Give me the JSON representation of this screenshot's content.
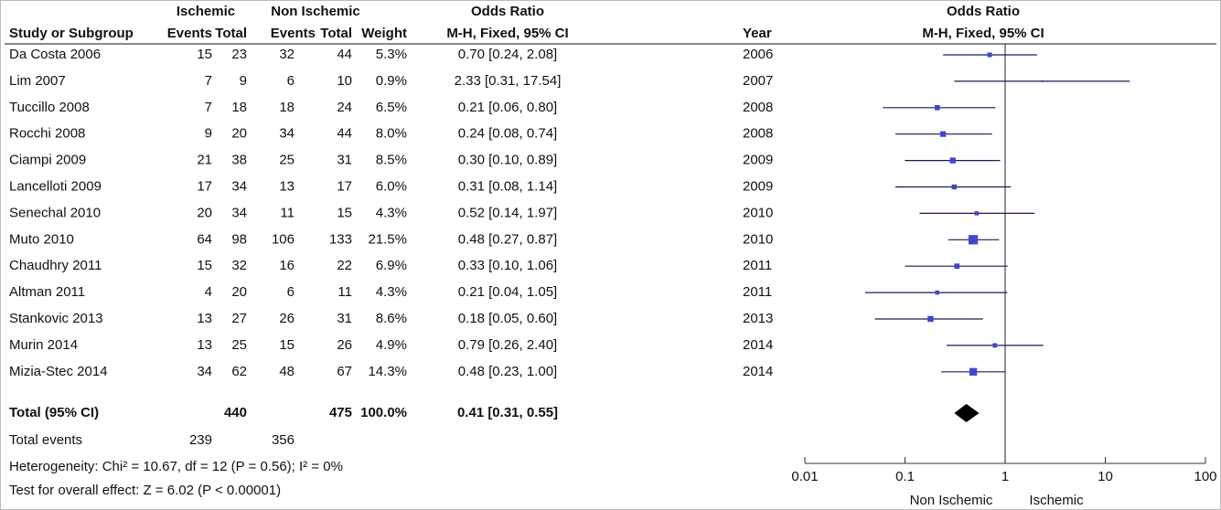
{
  "table": {
    "group_headers": [
      "Ischemic",
      "Non Ischemic",
      "Odds Ratio"
    ],
    "columns": [
      "Study or Subgroup",
      "Events",
      "Total",
      "Events",
      "Total",
      "Weight",
      "M-H, Fixed, 95% CI",
      "Year"
    ],
    "rows": [
      [
        "Da Costa 2006",
        "15",
        "23",
        "32",
        "44",
        "5.3%",
        "0.70 [0.24, 2.08]",
        "2006"
      ],
      [
        "Lim 2007",
        "7",
        "9",
        "6",
        "10",
        "0.9%",
        "2.33 [0.31, 17.54]",
        "2007"
      ],
      [
        "Tuccillo 2008",
        "7",
        "18",
        "18",
        "24",
        "6.5%",
        "0.21 [0.06, 0.80]",
        "2008"
      ],
      [
        "Rocchi 2008",
        "9",
        "20",
        "34",
        "44",
        "8.0%",
        "0.24 [0.08, 0.74]",
        "2008"
      ],
      [
        "Ciampi 2009",
        "21",
        "38",
        "25",
        "31",
        "8.5%",
        "0.30 [0.10, 0.89]",
        "2009"
      ],
      [
        "Lancelloti 2009",
        "17",
        "34",
        "13",
        "17",
        "6.0%",
        "0.31 [0.08, 1.14]",
        "2009"
      ],
      [
        "Senechal 2010",
        "20",
        "34",
        "11",
        "15",
        "4.3%",
        "0.52 [0.14, 1.97]",
        "2010"
      ],
      [
        "Muto 2010",
        "64",
        "98",
        "106",
        "133",
        "21.5%",
        "0.48 [0.27, 0.87]",
        "2010"
      ],
      [
        "Chaudhry 2011",
        "15",
        "32",
        "16",
        "22",
        "6.9%",
        "0.33 [0.10, 1.06]",
        "2011"
      ],
      [
        "Altman 2011",
        "4",
        "20",
        "6",
        "11",
        "4.3%",
        "0.21 [0.04, 1.05]",
        "2011"
      ],
      [
        "Stankovic 2013",
        "13",
        "27",
        "26",
        "31",
        "8.6%",
        "0.18 [0.05, 0.60]",
        "2013"
      ],
      [
        "Murin 2014",
        "13",
        "25",
        "15",
        "26",
        "4.9%",
        "0.79 [0.26, 2.40]",
        "2014"
      ],
      [
        "Mizia-Stec 2014",
        "34",
        "62",
        "48",
        "67",
        "14.3%",
        "0.48 [0.23, 1.00]",
        "2014"
      ]
    ],
    "total_row": [
      "Total (95% CI)",
      null,
      "440",
      null,
      "475",
      "100.0%",
      "0.41 [0.31, 0.55]",
      null
    ],
    "events_row": [
      "Total events",
      "239",
      null,
      "356",
      null,
      null,
      null,
      null
    ],
    "heterogeneity": "Heterogeneity: Chi² = 10.67, df = 12 (P = 0.56); I² = 0%",
    "overall_effect": "Test for overall effect: Z = 6.02 (P < 0.00001)"
  },
  "chart_data": {
    "type": "forest",
    "title": "Odds Ratio",
    "subtitle": "M-H, Fixed, 95% CI",
    "values": [
      0.7,
      2.33,
      0.21,
      0.24,
      0.3,
      0.31,
      0.52,
      0.48,
      0.33,
      0.21,
      0.18,
      0.79,
      0.48
    ],
    "lower": [
      0.24,
      0.31,
      0.06,
      0.08,
      0.1,
      0.08,
      0.14,
      0.27,
      0.1,
      0.04,
      0.05,
      0.26,
      0.23
    ],
    "upper": [
      2.08,
      17.54,
      0.8,
      0.74,
      0.89,
      1.14,
      1.97,
      0.87,
      1.06,
      1.05,
      0.6,
      2.4,
      1.0
    ],
    "weights": [
      5.3,
      0.9,
      6.5,
      8.0,
      8.5,
      6.0,
      4.3,
      21.5,
      6.9,
      4.3,
      8.6,
      4.9,
      14.3
    ],
    "total": {
      "value": 0.41,
      "lower": 0.31,
      "upper": 0.55
    },
    "color": "#3f48cc",
    "total_color": "#000000",
    "log_scale": true,
    "null_line": 1,
    "xlim": [
      0.01,
      100
    ],
    "xticks": [
      0.01,
      0.1,
      1,
      10,
      100
    ],
    "x_label_left": "Non Ischemic",
    "x_label_right": "Ischemic"
  }
}
